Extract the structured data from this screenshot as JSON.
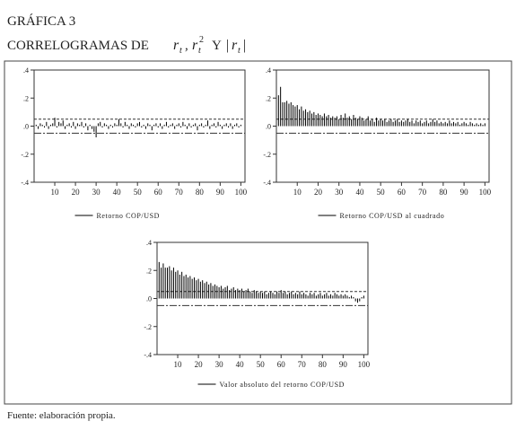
{
  "header": {
    "label": "GRÁFICA 3",
    "title_parts": [
      "CORRELOGRAMAS DE",
      "r",
      "t",
      ",",
      "r",
      "t",
      "2",
      "Y",
      "|",
      "r",
      "t",
      "|"
    ]
  },
  "footer": "Fuente: elaboración propia.",
  "chart_data": [
    {
      "type": "bar",
      "xlim": [
        0,
        102
      ],
      "ylim": [
        -0.4,
        0.4
      ],
      "xticks": [
        10,
        20,
        30,
        40,
        50,
        60,
        70,
        80,
        90,
        100
      ],
      "yticks": [
        {
          "value": 0.4,
          "label": ".4"
        },
        {
          "value": 0.2,
          "label": ".2"
        },
        {
          "value": 0,
          "label": ".0"
        },
        {
          "value": -0.2,
          "label": "-.2"
        },
        {
          "value": -0.4,
          "label": "-.4"
        }
      ],
      "conf_band": [
        0.05,
        -0.05
      ],
      "x": [
        1,
        2,
        3,
        4,
        5,
        6,
        7,
        8,
        9,
        10,
        11,
        12,
        13,
        14,
        15,
        16,
        17,
        18,
        19,
        20,
        21,
        22,
        23,
        24,
        25,
        26,
        27,
        28,
        29,
        30,
        31,
        32,
        33,
        34,
        35,
        36,
        37,
        38,
        39,
        40,
        41,
        42,
        43,
        44,
        45,
        46,
        47,
        48,
        49,
        50,
        51,
        52,
        53,
        54,
        55,
        56,
        57,
        58,
        59,
        60,
        61,
        62,
        63,
        64,
        65,
        66,
        67,
        68,
        69,
        70,
        71,
        72,
        73,
        74,
        75,
        76,
        77,
        78,
        79,
        80,
        81,
        82,
        83,
        84,
        85,
        86,
        87,
        88,
        89,
        90,
        91,
        92,
        93,
        94,
        95,
        96,
        97,
        98,
        99,
        100
      ],
      "series": [
        {
          "name": "Retorno COP/USD",
          "color": "#000000",
          "values": [
            0.01,
            -0.02,
            0.02,
            0.01,
            -0.01,
            0.03,
            -0.02,
            0.01,
            0.02,
            0.06,
            -0.01,
            0.03,
            0.02,
            0.04,
            -0.02,
            0.01,
            0.02,
            -0.01,
            0.03,
            -0.02,
            0.02,
            0.01,
            0.03,
            -0.01,
            0.02,
            -0.03,
            0.01,
            -0.02,
            -0.04,
            -0.08,
            0.02,
            0.03,
            -0.01,
            0.02,
            0.01,
            -0.02,
            0.01,
            -0.01,
            0.02,
            0.01,
            0.05,
            0.02,
            -0.01,
            0.03,
            0.01,
            -0.02,
            0.02,
            0.01,
            -0.01,
            0.02,
            0.03,
            -0.01,
            0.01,
            -0.02,
            0.02,
            0.01,
            -0.03,
            0.01,
            0.02,
            -0.01,
            0.02,
            -0.02,
            0.01,
            0.03,
            -0.01,
            0.01,
            0.02,
            -0.02,
            0.01,
            0.02,
            -0.01,
            0.03,
            0.01,
            -0.02,
            0.02,
            -0.01,
            0.01,
            0.02,
            -0.03,
            0.01,
            0.02,
            -0.01,
            0.01,
            0.04,
            -0.02,
            0.01,
            0.02,
            -0.01,
            0.03,
            0.01,
            -0.02,
            0.01,
            0.02,
            -0.01,
            0.02,
            -0.02,
            0.01,
            0.02,
            -0.01,
            0.01
          ]
        }
      ]
    },
    {
      "type": "bar",
      "xlim": [
        0,
        102
      ],
      "ylim": [
        -0.4,
        0.4
      ],
      "xticks": [
        10,
        20,
        30,
        40,
        50,
        60,
        70,
        80,
        90,
        100
      ],
      "yticks": [
        {
          "value": 0.4,
          "label": ".4"
        },
        {
          "value": 0.2,
          "label": ".2"
        },
        {
          "value": 0,
          "label": ".0"
        },
        {
          "value": -0.2,
          "label": "-.2"
        },
        {
          "value": -0.4,
          "label": "-.4"
        }
      ],
      "conf_band": [
        0.05,
        -0.05
      ],
      "x": [
        1,
        2,
        3,
        4,
        5,
        6,
        7,
        8,
        9,
        10,
        11,
        12,
        13,
        14,
        15,
        16,
        17,
        18,
        19,
        20,
        21,
        22,
        23,
        24,
        25,
        26,
        27,
        28,
        29,
        30,
        31,
        32,
        33,
        34,
        35,
        36,
        37,
        38,
        39,
        40,
        41,
        42,
        43,
        44,
        45,
        46,
        47,
        48,
        49,
        50,
        51,
        52,
        53,
        54,
        55,
        56,
        57,
        58,
        59,
        60,
        61,
        62,
        63,
        64,
        65,
        66,
        67,
        68,
        69,
        70,
        71,
        72,
        73,
        74,
        75,
        76,
        77,
        78,
        79,
        80,
        81,
        82,
        83,
        84,
        85,
        86,
        87,
        88,
        89,
        90,
        91,
        92,
        93,
        94,
        95,
        96,
        97,
        98,
        99,
        100
      ],
      "series": [
        {
          "name": "Retorno COP/USD al cuadrado",
          "color": "#000000",
          "values": [
            0.22,
            0.28,
            0.17,
            0.17,
            0.18,
            0.16,
            0.17,
            0.15,
            0.14,
            0.15,
            0.12,
            0.14,
            0.11,
            0.12,
            0.1,
            0.11,
            0.09,
            0.1,
            0.08,
            0.09,
            0.08,
            0.07,
            0.09,
            0.07,
            0.08,
            0.06,
            0.07,
            0.06,
            0.07,
            0.05,
            0.08,
            0.06,
            0.09,
            0.06,
            0.07,
            0.05,
            0.08,
            0.06,
            0.05,
            0.07,
            0.06,
            0.04,
            0.05,
            0.07,
            0.04,
            0.05,
            0.03,
            0.06,
            0.04,
            0.05,
            0.04,
            0.05,
            0.03,
            0.04,
            0.05,
            0.03,
            0.04,
            0.05,
            0.03,
            0.04,
            0.03,
            0.04,
            0.05,
            0.03,
            0.04,
            0.02,
            0.04,
            0.03,
            0.04,
            0.02,
            0.03,
            0.04,
            0.02,
            0.03,
            0.05,
            0.03,
            0.04,
            0.02,
            0.03,
            0.02,
            0.03,
            0.02,
            0.04,
            0.02,
            0.03,
            0.02,
            0.03,
            0.01,
            0.02,
            0.03,
            0.02,
            0.01,
            0.03,
            0.02,
            0.01,
            0.02,
            0.01,
            0.02,
            0.01,
            0.02
          ]
        }
      ]
    },
    {
      "type": "bar",
      "xlim": [
        0,
        102
      ],
      "ylim": [
        -0.4,
        0.4
      ],
      "xticks": [
        10,
        20,
        30,
        40,
        50,
        60,
        70,
        80,
        90,
        100
      ],
      "yticks": [
        {
          "value": 0.4,
          "label": ".4"
        },
        {
          "value": 0.2,
          "label": ".2"
        },
        {
          "value": 0,
          "label": ".0"
        },
        {
          "value": -0.2,
          "label": "-.2"
        },
        {
          "value": -0.4,
          "label": "-.4"
        }
      ],
      "conf_band": [
        0.05,
        -0.05
      ],
      "x": [
        1,
        2,
        3,
        4,
        5,
        6,
        7,
        8,
        9,
        10,
        11,
        12,
        13,
        14,
        15,
        16,
        17,
        18,
        19,
        20,
        21,
        22,
        23,
        24,
        25,
        26,
        27,
        28,
        29,
        30,
        31,
        32,
        33,
        34,
        35,
        36,
        37,
        38,
        39,
        40,
        41,
        42,
        43,
        44,
        45,
        46,
        47,
        48,
        49,
        50,
        51,
        52,
        53,
        54,
        55,
        56,
        57,
        58,
        59,
        60,
        61,
        62,
        63,
        64,
        65,
        66,
        67,
        68,
        69,
        70,
        71,
        72,
        73,
        74,
        75,
        76,
        77,
        78,
        79,
        80,
        81,
        82,
        83,
        84,
        85,
        86,
        87,
        88,
        89,
        90,
        91,
        92,
        93,
        94,
        95,
        96,
        97,
        98,
        99,
        100
      ],
      "series": [
        {
          "name": "Valor absoluto del retorno COP/USD",
          "color": "#000000",
          "values": [
            0.26,
            0.22,
            0.25,
            0.22,
            0.22,
            0.23,
            0.2,
            0.22,
            0.19,
            0.2,
            0.17,
            0.19,
            0.16,
            0.17,
            0.15,
            0.16,
            0.14,
            0.15,
            0.13,
            0.14,
            0.12,
            0.13,
            0.11,
            0.12,
            0.1,
            0.11,
            0.09,
            0.1,
            0.09,
            0.08,
            0.09,
            0.07,
            0.08,
            0.09,
            0.06,
            0.07,
            0.08,
            0.06,
            0.07,
            0.06,
            0.07,
            0.05,
            0.06,
            0.07,
            0.05,
            0.04,
            0.06,
            0.05,
            0.04,
            0.05,
            0.04,
            0.05,
            0.03,
            0.04,
            0.05,
            0.04,
            0.03,
            0.05,
            0.04,
            0.06,
            0.04,
            0.05,
            0.03,
            0.04,
            0.05,
            0.03,
            0.04,
            0.03,
            0.05,
            0.03,
            0.04,
            0.03,
            0.02,
            0.04,
            0.03,
            0.04,
            0.02,
            0.03,
            0.04,
            0.02,
            0.03,
            0.04,
            0.02,
            0.03,
            0.02,
            0.04,
            0.03,
            0.02,
            0.03,
            0.02,
            0.03,
            0.02,
            0.01,
            0.02,
            0.01,
            -0.02,
            -0.03,
            -0.02,
            0.01,
            0.02
          ]
        }
      ]
    }
  ]
}
